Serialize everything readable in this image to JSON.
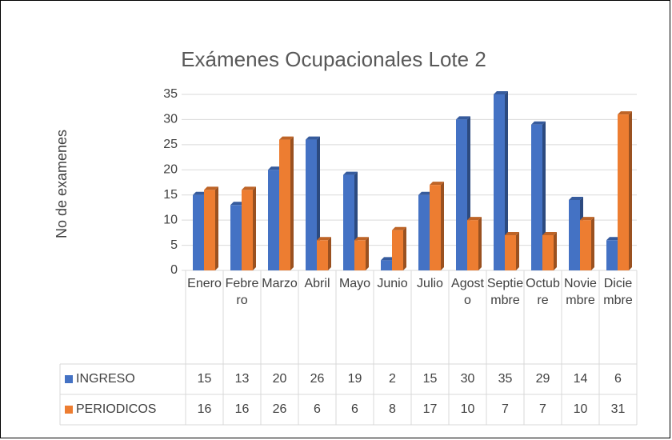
{
  "chart_data": {
    "type": "bar",
    "title": "Exámenes Ocupacionales Lote 2",
    "y_label": "No de examenes",
    "categories": [
      "Enero",
      "Febrero",
      "Marzo",
      "Abril",
      "Mayo",
      "Junio",
      "Julio",
      "Agosto",
      "Septiembre",
      "Octubre",
      "Noviembre",
      "Diciembre"
    ],
    "series": [
      {
        "name": "INGRESO",
        "color": "#4472c4",
        "values": [
          15,
          13,
          20,
          26,
          19,
          2,
          15,
          30,
          35,
          29,
          14,
          6
        ]
      },
      {
        "name": "PERIODICOS",
        "color": "#ed7d31",
        "values": [
          16,
          16,
          26,
          6,
          6,
          8,
          17,
          10,
          7,
          7,
          10,
          31
        ]
      }
    ],
    "ylim": [
      0,
      35
    ],
    "yticks": [
      0,
      5,
      10,
      15,
      20,
      25,
      30,
      35
    ],
    "grid": true,
    "data_table": true
  }
}
